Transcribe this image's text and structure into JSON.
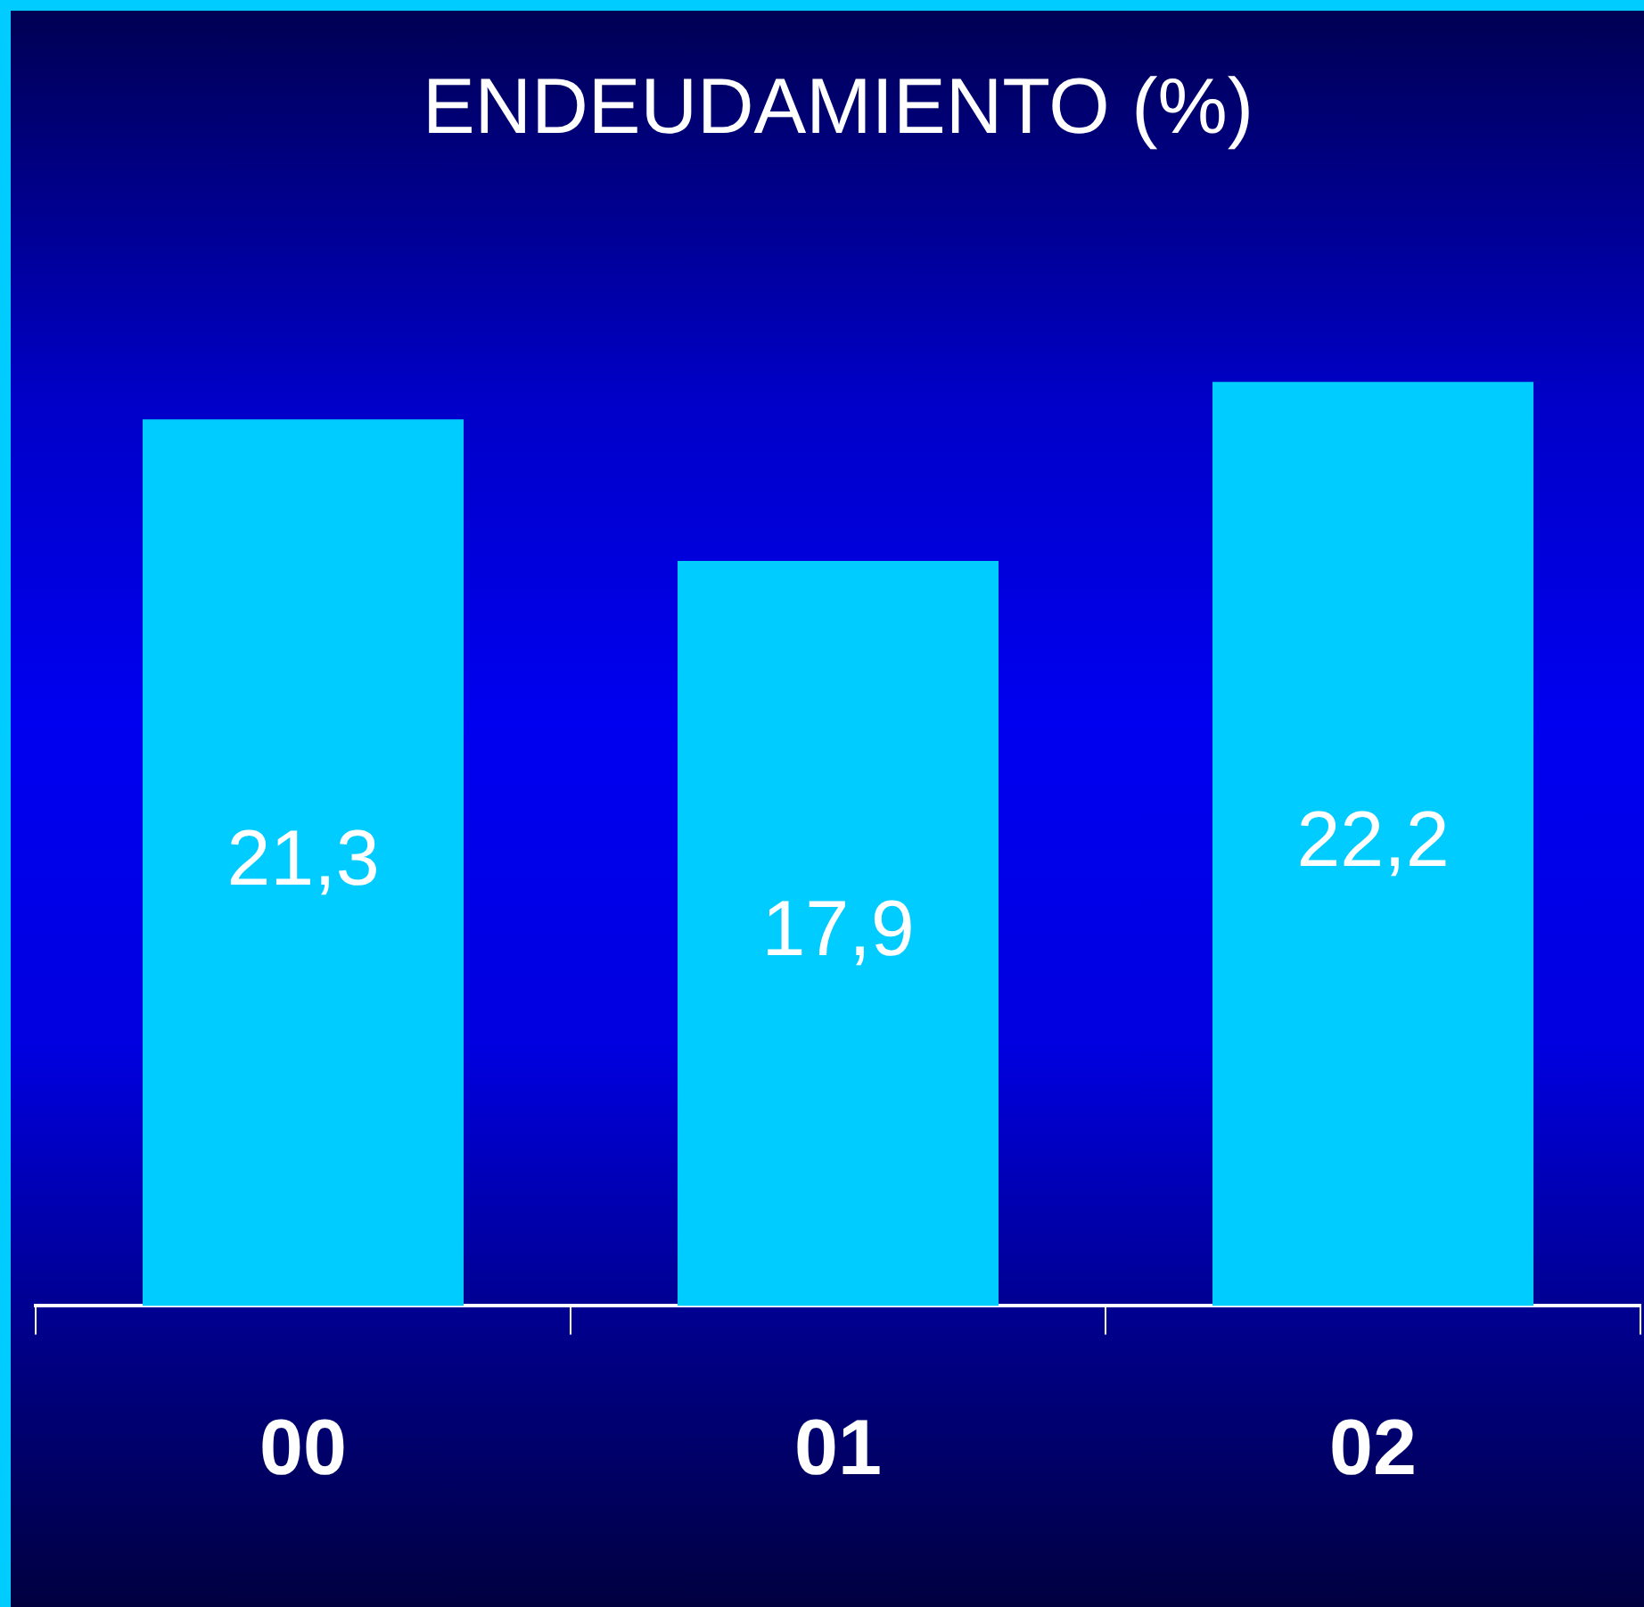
{
  "chart_data": {
    "type": "bar",
    "title": "ENDEUDAMIENTO (%)",
    "categories": [
      "00",
      "01",
      "02"
    ],
    "values": [
      21.3,
      17.9,
      22.2
    ],
    "color": "#00ccff",
    "value_labels": [
      "21,3",
      "17,9",
      "22,2"
    ],
    "legend": false
  }
}
